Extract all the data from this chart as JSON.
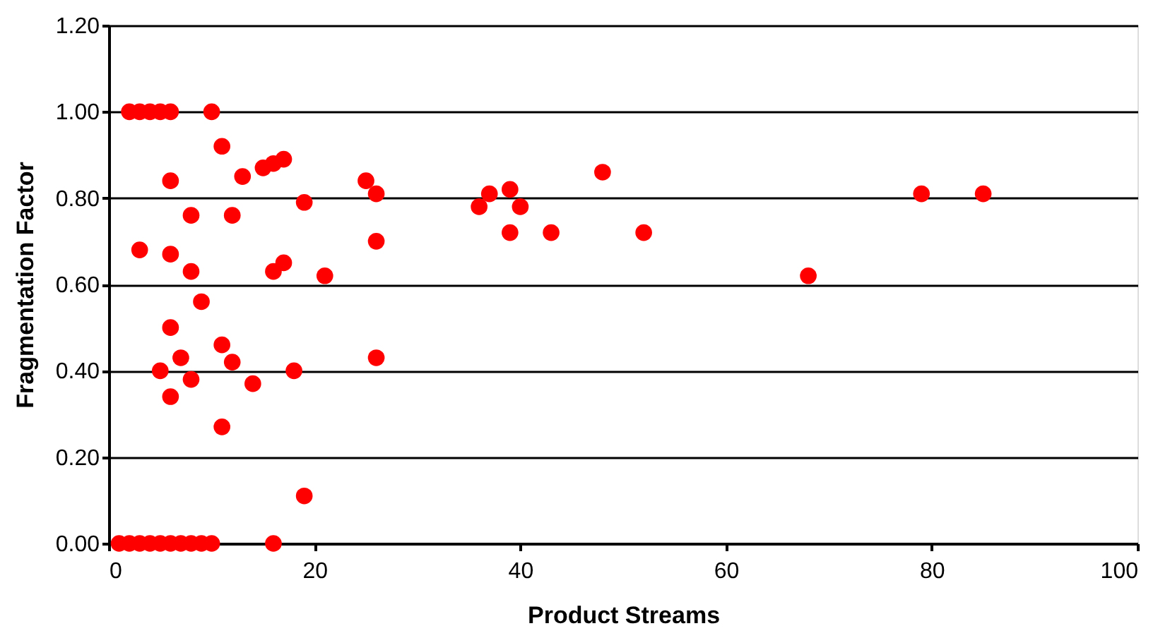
{
  "chart_data": {
    "type": "scatter",
    "xlabel": "Product Streams",
    "ylabel": "Fragmentation Factor",
    "x": [
      2,
      3,
      4,
      5,
      6,
      10,
      11,
      6,
      3,
      6,
      8,
      12,
      8,
      13,
      15,
      16,
      17,
      19,
      25,
      26,
      26,
      16,
      17,
      21,
      9,
      6,
      11,
      12,
      7,
      5,
      14,
      18,
      6,
      8,
      11,
      19,
      26,
      1,
      2,
      3,
      4,
      5,
      6,
      7,
      8,
      9,
      10,
      16,
      36,
      37,
      39,
      40,
      39,
      43,
      48,
      52,
      68,
      79,
      85
    ],
    "series": [
      {
        "color": "#ff0000",
        "values": [
          1.0,
          1.0,
          1.0,
          1.0,
          1.0,
          1.0,
          0.92,
          0.84,
          0.68,
          0.67,
          0.76,
          0.76,
          0.63,
          0.85,
          0.87,
          0.88,
          0.89,
          0.79,
          0.84,
          0.81,
          0.7,
          0.63,
          0.65,
          0.62,
          0.56,
          0.5,
          0.46,
          0.42,
          0.43,
          0.4,
          0.37,
          0.4,
          0.34,
          0.38,
          0.27,
          0.11,
          0.43,
          0,
          0,
          0,
          0,
          0,
          0,
          0,
          0,
          0,
          0,
          0,
          0.78,
          0.81,
          0.82,
          0.78,
          0.72,
          0.72,
          0.86,
          0.72,
          0.62,
          0.81,
          0.81
        ]
      }
    ],
    "xlim": [
      0,
      100
    ],
    "xticks": [
      0,
      20,
      40,
      60,
      80,
      100
    ],
    "ylim": [
      0,
      1.2
    ],
    "yticks": [
      {
        "value": 0,
        "label": "0.00"
      },
      {
        "value": 0.2,
        "label": "0.20"
      },
      {
        "value": 0.4,
        "label": "0.40"
      },
      {
        "value": 0.6,
        "label": "0.60"
      },
      {
        "value": 0.8,
        "label": "0.80"
      },
      {
        "value": 1.0,
        "label": "1.00"
      },
      {
        "value": 1.2,
        "label": "1.20"
      }
    ],
    "grid": "y",
    "marker": "circle"
  }
}
